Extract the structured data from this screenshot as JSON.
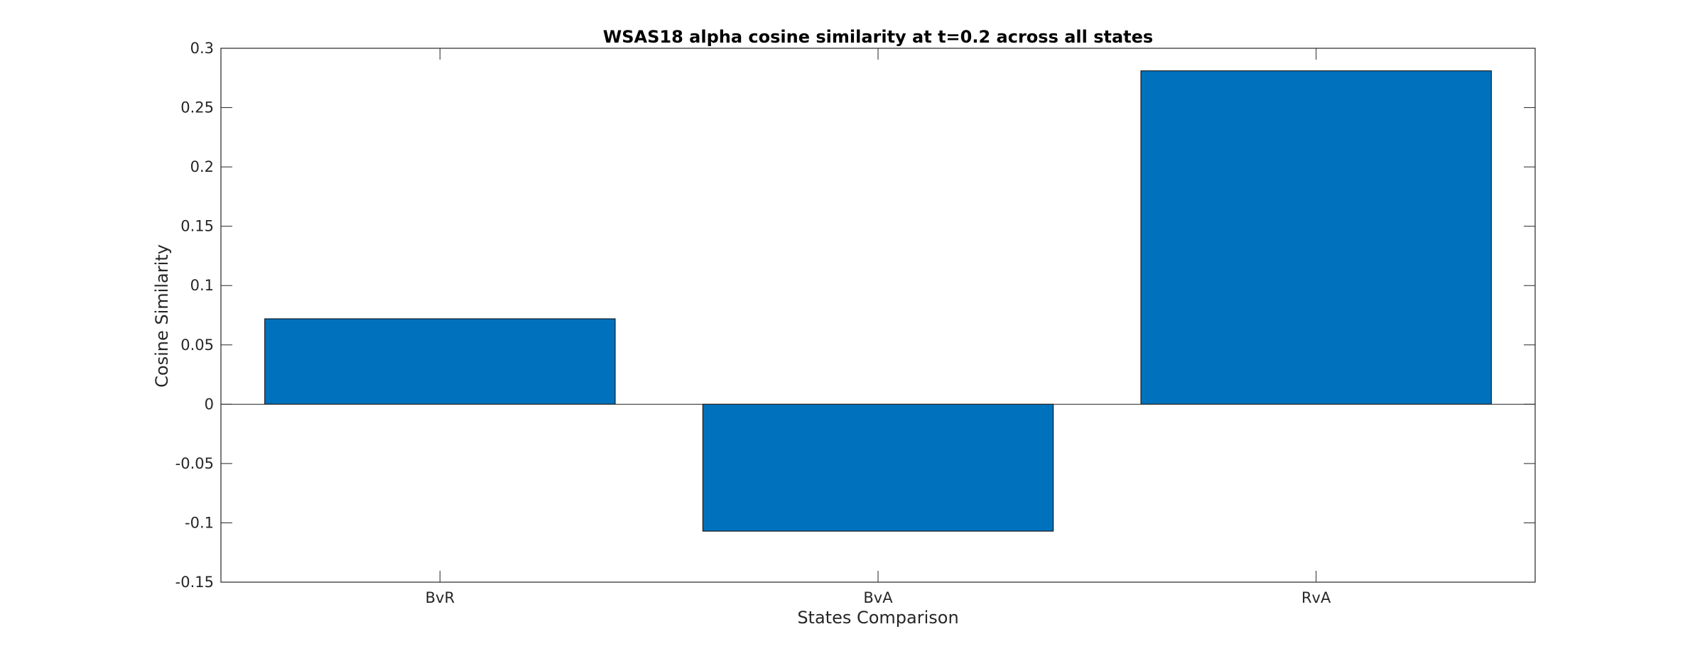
{
  "chart_data": {
    "type": "bar",
    "title": "WSAS18 alpha cosine similarity at t=0.2 across all states",
    "xlabel": "States Comparison",
    "ylabel": "Cosine Similarity",
    "categories": [
      "BvR",
      "BvA",
      "RvA"
    ],
    "values": [
      0.072,
      -0.107,
      0.281
    ],
    "ylim": [
      -0.15,
      0.3
    ],
    "yticks": [
      -0.15,
      -0.1,
      -0.05,
      0,
      0.05,
      0.1,
      0.15,
      0.2,
      0.25,
      0.3
    ],
    "ytick_labels": [
      "-0.15",
      "-0.1",
      "-0.05",
      "0",
      "0.05",
      "0.1",
      "0.15",
      "0.2",
      "0.25",
      "0.3"
    ],
    "grid": false,
    "legend": "none",
    "colors": {
      "bar": "#0072BD",
      "bar_edge": "#000000",
      "axes": "#262626"
    }
  }
}
